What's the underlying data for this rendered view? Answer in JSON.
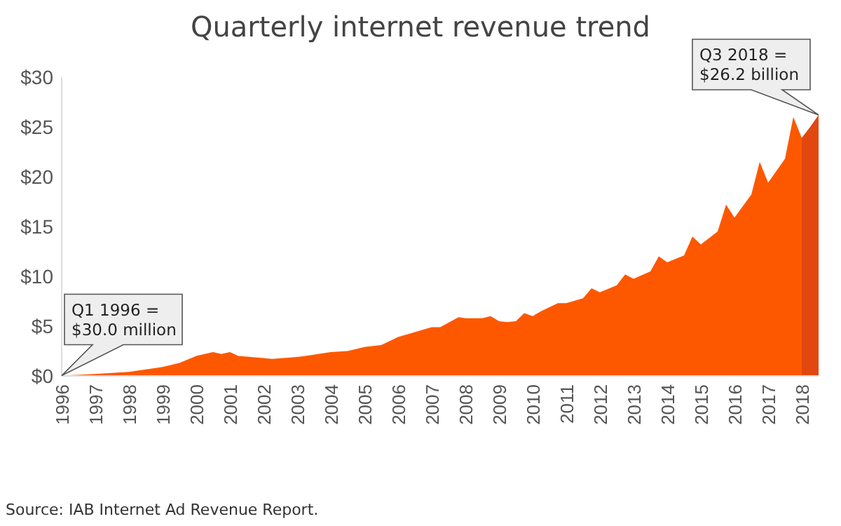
{
  "chart_data": {
    "type": "area",
    "title": "Quarterly internet revenue trend",
    "xlim": [
      1996,
      2018.5
    ],
    "xticks": [
      1996,
      1997,
      1998,
      1999,
      2000,
      2001,
      2002,
      2003,
      2004,
      2005,
      2006,
      2007,
      2008,
      2009,
      2010,
      2011,
      2012,
      2013,
      2014,
      2015,
      2016,
      2017,
      2018
    ],
    "ylim": [
      0,
      30
    ],
    "yticks": [
      {
        "value": 0,
        "label": "$0"
      },
      {
        "value": 5,
        "label": "$5"
      },
      {
        "value": 10,
        "label": "$10"
      },
      {
        "value": 15,
        "label": "$15"
      },
      {
        "value": 20,
        "label": "$20"
      },
      {
        "value": 25,
        "label": "$25"
      },
      {
        "value": 30,
        "label": "$30"
      }
    ],
    "grid": false,
    "series": [
      {
        "color": "#fd5800",
        "x": [
          1996,
          1997,
          1998,
          1999,
          1999.5,
          2000,
          2000.5,
          2000.75,
          2001,
          2001.25,
          2002,
          2002.25,
          2003,
          2003.25,
          2004,
          2004.5,
          2005,
          2005.5,
          2006,
          2006.5,
          2007,
          2007.25,
          2007.8,
          2008,
          2008.5,
          2008.75,
          2009,
          2009.25,
          2009.5,
          2009.75,
          2010,
          2010.25,
          2010.75,
          2011,
          2011.5,
          2011.75,
          2012,
          2012.5,
          2012.75,
          2013,
          2013.5,
          2013.75,
          2014,
          2014.5,
          2014.75,
          2015,
          2015.5,
          2015.75,
          2016,
          2016.5,
          2016.75,
          2017,
          2017.5,
          2017.75,
          2018
        ],
        "values": [
          0.03,
          0.2,
          0.4,
          0.9,
          1.3,
          2.0,
          2.4,
          2.2,
          2.4,
          2.0,
          1.8,
          1.7,
          1.9,
          2.0,
          2.4,
          2.5,
          2.9,
          3.1,
          3.9,
          4.4,
          4.9,
          4.9,
          5.9,
          5.8,
          5.8,
          6.0,
          5.5,
          5.4,
          5.5,
          6.3,
          6.0,
          6.5,
          7.3,
          7.3,
          7.8,
          8.8,
          8.4,
          9.1,
          10.2,
          9.75,
          10.5,
          12.0,
          11.4,
          12.1,
          14.0,
          13.2,
          14.5,
          17.2,
          15.9,
          18.2,
          21.5,
          19.4,
          21.8,
          26.0,
          23.9
        ]
      },
      {
        "color": "#e2470f",
        "x": [
          2018,
          2018.25,
          2018.5
        ],
        "values": [
          23.9,
          25.0,
          26.2
        ]
      }
    ],
    "annotations": [
      {
        "text": "Q1 1996 =\n$30.0 million",
        "x": 1996,
        "y": 0.03
      },
      {
        "text": "Q3 2018 =\n$26.2 billion",
        "x": 2018.5,
        "y": 26.2
      },
      "Source: IAB Internet Ad Revenue Report."
    ]
  }
}
